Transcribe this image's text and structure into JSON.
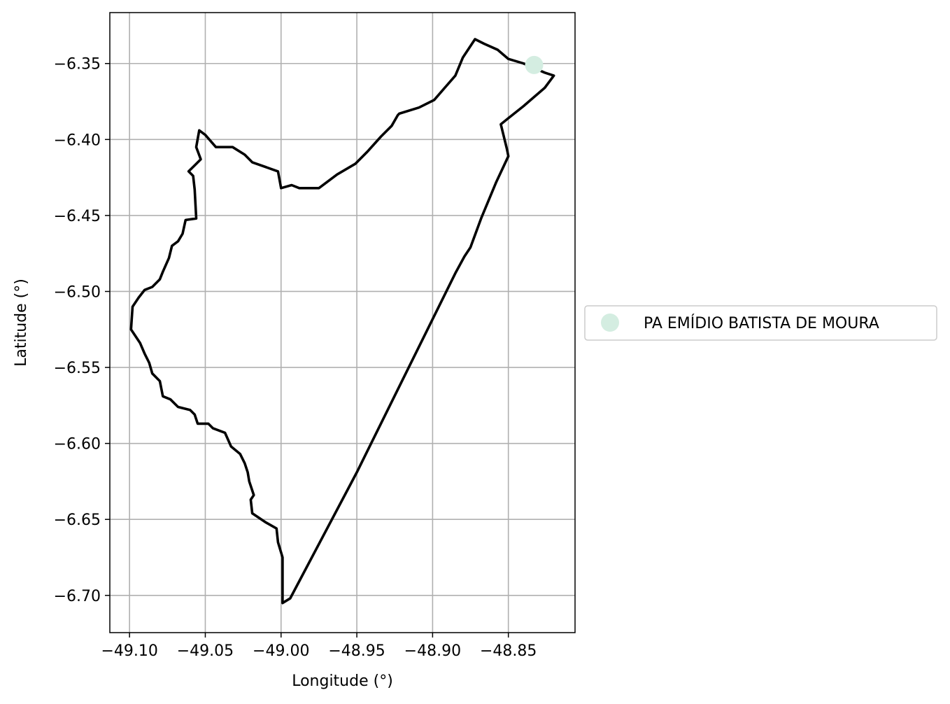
{
  "chart_data": {
    "type": "map",
    "xlabel": "Longitude (°)",
    "ylabel": "Latitude (°)",
    "xlim": [
      -49.113,
      -48.806
    ],
    "ylim": [
      -6.7245,
      -6.3165
    ],
    "xticks": [
      -49.1,
      -49.05,
      -49.0,
      -48.95,
      -48.9,
      -48.85
    ],
    "xtick_labels": [
      "−49.10",
      "−49.05",
      "−49.00",
      "−48.95",
      "−48.90",
      "−48.85"
    ],
    "yticks": [
      -6.35,
      -6.4,
      -6.45,
      -6.5,
      -6.55,
      -6.6,
      -6.65,
      -6.7
    ],
    "ytick_labels": [
      "−6.35",
      "−6.40",
      "−6.45",
      "−6.50",
      "−6.55",
      "−6.60",
      "−6.65",
      "−6.70"
    ],
    "grid": true,
    "legend_placement": "center-right outside",
    "boundary_color": "#000000",
    "point_color": "#d4ede1",
    "points": [
      {
        "name": "PA EMÍDIO BATISTA DE MOURA",
        "lon": -48.833,
        "lat": -6.351
      }
    ],
    "legend": [
      {
        "label": "PA EMÍDIO BATISTA DE MOURA",
        "color": "#d4ede1"
      }
    ],
    "boundary": [
      [
        -48.872,
        -6.334
      ],
      [
        -48.866,
        -6.337
      ],
      [
        -48.857,
        -6.341
      ],
      [
        -48.85,
        -6.347
      ],
      [
        -48.84,
        -6.35
      ],
      [
        -48.826,
        -6.356
      ],
      [
        -48.82,
        -6.358
      ],
      [
        -48.826,
        -6.366
      ],
      [
        -48.84,
        -6.378
      ],
      [
        -48.85,
        -6.386
      ],
      [
        -48.855,
        -6.39
      ],
      [
        -48.851,
        -6.406
      ],
      [
        -48.85,
        -6.411
      ],
      [
        -48.858,
        -6.428
      ],
      [
        -48.868,
        -6.452
      ],
      [
        -48.875,
        -6.471
      ],
      [
        -48.879,
        -6.477
      ],
      [
        -48.885,
        -6.488
      ],
      [
        -48.95,
        -6.619
      ],
      [
        -48.994,
        -6.702
      ],
      [
        -48.999,
        -6.705
      ],
      [
        -48.999,
        -6.675
      ],
      [
        -49.002,
        -6.665
      ],
      [
        -49.003,
        -6.656
      ],
      [
        -49.01,
        -6.652
      ],
      [
        -49.019,
        -6.646
      ],
      [
        -49.02,
        -6.637
      ],
      [
        -49.018,
        -6.634
      ],
      [
        -49.021,
        -6.625
      ],
      [
        -49.022,
        -6.619
      ],
      [
        -49.024,
        -6.613
      ],
      [
        -49.027,
        -6.607
      ],
      [
        -49.033,
        -6.602
      ],
      [
        -49.037,
        -6.593
      ],
      [
        -49.045,
        -6.59
      ],
      [
        -49.048,
        -6.587
      ],
      [
        -49.055,
        -6.587
      ],
      [
        -49.057,
        -6.581
      ],
      [
        -49.06,
        -6.578
      ],
      [
        -49.068,
        -6.576
      ],
      [
        -49.073,
        -6.571
      ],
      [
        -49.078,
        -6.569
      ],
      [
        -49.08,
        -6.559
      ],
      [
        -49.085,
        -6.554
      ],
      [
        -49.087,
        -6.547
      ],
      [
        -49.09,
        -6.541
      ],
      [
        -49.093,
        -6.534
      ],
      [
        -49.099,
        -6.525
      ],
      [
        -49.098,
        -6.51
      ],
      [
        -49.094,
        -6.504
      ],
      [
        -49.09,
        -6.499
      ],
      [
        -49.085,
        -6.497
      ],
      [
        -49.08,
        -6.492
      ],
      [
        -49.078,
        -6.487
      ],
      [
        -49.074,
        -6.478
      ],
      [
        -49.072,
        -6.47
      ],
      [
        -49.068,
        -6.467
      ],
      [
        -49.065,
        -6.462
      ],
      [
        -49.063,
        -6.453
      ],
      [
        -49.056,
        -6.452
      ],
      [
        -49.057,
        -6.433
      ],
      [
        -49.058,
        -6.424
      ],
      [
        -49.061,
        -6.421
      ],
      [
        -49.056,
        -6.416
      ],
      [
        -49.053,
        -6.413
      ],
      [
        -49.056,
        -6.405
      ],
      [
        -49.054,
        -6.394
      ],
      [
        -49.05,
        -6.397
      ],
      [
        -49.043,
        -6.405
      ],
      [
        -49.032,
        -6.405
      ],
      [
        -49.024,
        -6.41
      ],
      [
        -49.019,
        -6.415
      ],
      [
        -49.002,
        -6.421
      ],
      [
        -49.0,
        -6.432
      ],
      [
        -48.993,
        -6.43
      ],
      [
        -48.988,
        -6.432
      ],
      [
        -48.975,
        -6.432
      ],
      [
        -48.963,
        -6.423
      ],
      [
        -48.951,
        -6.416
      ],
      [
        -48.943,
        -6.408
      ],
      [
        -48.934,
        -6.398
      ],
      [
        -48.927,
        -6.391
      ],
      [
        -48.923,
        -6.384
      ],
      [
        -48.922,
        -6.383
      ],
      [
        -48.909,
        -6.379
      ],
      [
        -48.899,
        -6.374
      ],
      [
        -48.892,
        -6.366
      ],
      [
        -48.885,
        -6.358
      ],
      [
        -48.88,
        -6.346
      ],
      [
        -48.872,
        -6.334
      ]
    ]
  }
}
